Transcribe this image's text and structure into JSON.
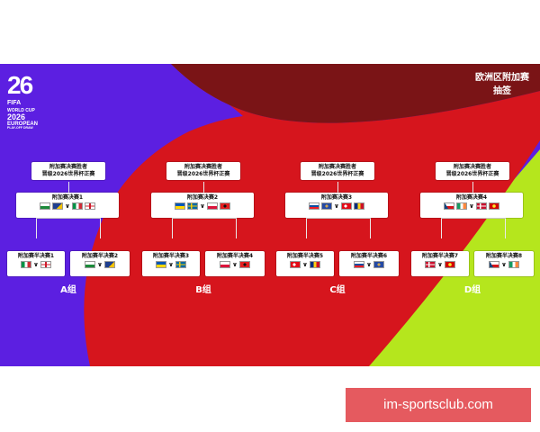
{
  "header": {
    "title_line1": "欧洲区附加赛",
    "title_line2": "抽签"
  },
  "logo": {
    "year_digits": "26",
    "fifa": "FIFA",
    "world_cup": "WORLD CUP",
    "year": "2026",
    "european": "EUROPEAN",
    "playoff_draw": "PLAY-OFF DRAW"
  },
  "colors": {
    "purple": "#5c1fe1",
    "red": "#d6151d",
    "dark_red": "#7a1416",
    "lime": "#b5e61d"
  },
  "brackets": [
    {
      "winner_line1": "附加赛决赛胜者",
      "winner_line2": "晋级2026世界杯正赛",
      "final_label": "附加赛决赛1",
      "final_flags": [
        "flag-wales",
        "flag-bosnia",
        "flag-italy",
        "flag-england"
      ],
      "semis": [
        {
          "label": "附加赛半决赛1",
          "flags": [
            "flag-italy",
            "flag-england"
          ]
        },
        {
          "label": "附加赛半决赛2",
          "flags": [
            "flag-wales",
            "flag-bosnia"
          ]
        }
      ],
      "group": "A组"
    },
    {
      "winner_line1": "附加赛决赛胜者",
      "winner_line2": "晋级2026世界杯正赛",
      "final_label": "附加赛决赛2",
      "final_flags": [
        "flag-ukraine",
        "flag-sweden",
        "flag-poland",
        "flag-albania"
      ],
      "semis": [
        {
          "label": "附加赛半决赛3",
          "flags": [
            "flag-ukraine",
            "flag-sweden"
          ]
        },
        {
          "label": "附加赛半决赛4",
          "flags": [
            "flag-poland",
            "flag-albania"
          ]
        }
      ],
      "group": "B组"
    },
    {
      "winner_line1": "附加赛决赛胜者",
      "winner_line2": "晋级2026世界杯正赛",
      "final_label": "附加赛决赛3",
      "final_flags": [
        "flag-slovakia",
        "flag-kosovo",
        "flag-turkey",
        "flag-romania"
      ],
      "semis": [
        {
          "label": "附加赛半决赛5",
          "flags": [
            "flag-turkey",
            "flag-romania"
          ]
        },
        {
          "label": "附加赛半决赛6",
          "flags": [
            "flag-slovakia",
            "flag-kosovo"
          ]
        }
      ],
      "group": "C组"
    },
    {
      "winner_line1": "附加赛决赛胜者",
      "winner_line2": "晋级2026世界杯正赛",
      "final_label": "附加赛决赛4",
      "final_flags": [
        "flag-czechia",
        "flag-ireland",
        "flag-denmark",
        "flag-north-macedonia"
      ],
      "semis": [
        {
          "label": "附加赛半决赛7",
          "flags": [
            "flag-denmark",
            "flag-north-macedonia"
          ]
        },
        {
          "label": "附加赛半决赛8",
          "flags": [
            "flag-czechia",
            "flag-ireland"
          ]
        }
      ],
      "group": "D组"
    }
  ],
  "watermark": "im-sportsclub.com"
}
